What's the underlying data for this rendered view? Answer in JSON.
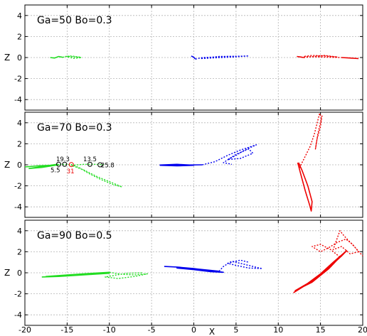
{
  "chart_data": {
    "type": "line",
    "xlabel": "X",
    "ylabel": "Z",
    "xlim": [
      -20,
      20
    ],
    "xticks": [
      -20,
      -15,
      -10,
      -5,
      0,
      5,
      10,
      15,
      20
    ],
    "ylim": [
      -5,
      5
    ],
    "yticks": [
      4,
      2,
      0,
      -2,
      -4
    ],
    "grid": true,
    "colors": {
      "green": "#22dd22",
      "blue": "#0000ee",
      "red": "#ee0000",
      "grid": "#b4b4b4"
    },
    "panels": [
      {
        "label": "Ga=50  Bo=0.3",
        "series": [
          {
            "color": "green",
            "solid": [
              [
                -17.0,
                0.0
              ],
              [
                -16.5,
                -0.05
              ],
              [
                -16.0,
                0.1
              ],
              [
                -15.5,
                0.02
              ]
            ],
            "dotted": [
              [
                -15.5,
                0.02
              ],
              [
                -15.0,
                0.12
              ],
              [
                -14.0,
                0.05
              ],
              [
                -13.3,
                0.0
              ],
              [
                -14.2,
                -0.08
              ],
              [
                -15.2,
                0.1
              ],
              [
                -14.5,
                0.15
              ],
              [
                -13.5,
                0.05
              ]
            ]
          },
          {
            "color": "blue",
            "solid": [
              [
                -0.3,
                0.15
              ],
              [
                0.0,
                0.02
              ],
              [
                0.2,
                -0.15
              ]
            ],
            "dotted": [
              [
                0.2,
                -0.15
              ],
              [
                1.0,
                0.0
              ],
              [
                2.5,
                0.05
              ],
              [
                4.0,
                0.1
              ],
              [
                6.5,
                0.15
              ],
              [
                4.5,
                0.05
              ],
              [
                2.0,
                -0.05
              ],
              [
                0.8,
                -0.1
              ],
              [
                3.0,
                0.1
              ],
              [
                5.0,
                0.12
              ]
            ]
          },
          {
            "color": "red",
            "solid": [
              [
                12.2,
                0.1
              ],
              [
                12.7,
                0.05
              ],
              [
                13.0,
                0.0
              ]
            ],
            "dotted": [
              [
                13.0,
                0.0
              ],
              [
                14.2,
                0.1
              ],
              [
                15.5,
                0.2
              ],
              [
                17.0,
                0.05
              ],
              [
                15.5,
                0.15
              ],
              [
                14.0,
                0.2
              ],
              [
                13.0,
                0.1
              ],
              [
                15.0,
                0.05
              ],
              [
                17.5,
                0.0
              ]
            ],
            "solid_tail": [
              [
                17.5,
                0.0
              ],
              [
                18.5,
                -0.05
              ],
              [
                19.5,
                -0.1
              ]
            ]
          }
        ]
      },
      {
        "label": "Ga=70 Bo=0.3",
        "series": [
          {
            "color": "green",
            "solid": [
              [
                -20.0,
                -0.2
              ],
              [
                -18.5,
                -0.1
              ],
              [
                -17.0,
                -0.05
              ],
              [
                -16.0,
                0.0
              ],
              [
                -18.0,
                -0.25
              ],
              [
                -19.5,
                -0.35
              ],
              [
                -17.5,
                -0.1
              ],
              [
                -16.2,
                0.05
              ]
            ],
            "dotted": [
              [
                -16.2,
                0.05
              ],
              [
                -14.5,
                0.02
              ],
              [
                -13.5,
                -0.3
              ],
              [
                -12.5,
                -0.8
              ],
              [
                -11.0,
                -1.4
              ],
              [
                -9.5,
                -1.9
              ],
              [
                -8.5,
                -2.1
              ],
              [
                -10.0,
                -1.6
              ],
              [
                -11.5,
                -1.1
              ],
              [
                -13.0,
                -0.5
              ],
              [
                -14.5,
                -0.05
              ],
              [
                -13.0,
                0.05
              ],
              [
                -11.5,
                0.05
              ],
              [
                -10.5,
                0.0
              ]
            ]
          },
          {
            "color": "blue",
            "solid": [
              [
                -4.0,
                -0.05
              ],
              [
                -2.0,
                -0.1
              ],
              [
                0.0,
                -0.05
              ],
              [
                -2.0,
                0.05
              ],
              [
                -4.0,
                -0.02
              ],
              [
                -1.0,
                -0.02
              ],
              [
                1.0,
                0.0
              ]
            ],
            "dotted": [
              [
                1.0,
                0.0
              ],
              [
                2.5,
                0.3
              ],
              [
                4.0,
                0.9
              ],
              [
                5.5,
                1.4
              ],
              [
                7.0,
                1.8
              ],
              [
                7.4,
                1.9
              ],
              [
                6.0,
                1.4
              ],
              [
                5.0,
                0.9
              ],
              [
                4.0,
                0.5
              ],
              [
                5.5,
                0.6
              ],
              [
                7.0,
                1.1
              ],
              [
                6.5,
                1.5
              ],
              [
                5.0,
                1.0
              ],
              [
                3.5,
                0.2
              ],
              [
                4.5,
                0.05
              ]
            ]
          },
          {
            "color": "red",
            "solid": [
              [
                12.3,
                0.2
              ],
              [
                12.7,
                -1.0
              ],
              [
                13.2,
                -2.5
              ],
              [
                13.7,
                -3.8
              ],
              [
                13.9,
                -4.4
              ],
              [
                14.0,
                -3.5
              ],
              [
                13.5,
                -2.0
              ],
              [
                12.8,
                -0.5
              ],
              [
                12.4,
                0.2
              ]
            ],
            "dotted": [
              [
                12.5,
                -0.3
              ],
              [
                13.0,
                0.5
              ],
              [
                13.8,
                1.8
              ],
              [
                14.3,
                3.0
              ],
              [
                14.7,
                4.3
              ],
              [
                14.9,
                4.9
              ],
              [
                15.1,
                4.4
              ],
              [
                14.7,
                3.0
              ],
              [
                14.4,
                1.5
              ],
              [
                14.6,
                2.5
              ],
              [
                15.0,
                3.6
              ],
              [
                15.2,
                4.8
              ]
            ]
          }
        ],
        "annotations": [
          {
            "text": "19.3",
            "x": -15.5,
            "y": 0.55,
            "color": "black"
          },
          {
            "text": "13.5",
            "x": -12.3,
            "y": 0.55,
            "color": "black"
          },
          {
            "text": "5.5",
            "x": -16.4,
            "y": -0.5,
            "color": "black"
          },
          {
            "text": "31",
            "x": -14.6,
            "y": -0.6,
            "color": "red"
          },
          {
            "text": "25.8",
            "x": -10.2,
            "y": -0.05,
            "color": "black"
          }
        ],
        "markers": [
          {
            "x": -16.0,
            "y": 0.05,
            "color": "black"
          },
          {
            "x": -15.3,
            "y": 0.05,
            "color": "black"
          },
          {
            "x": -14.5,
            "y": 0.02,
            "color": "red"
          },
          {
            "x": -12.3,
            "y": 0.05,
            "color": "black"
          },
          {
            "x": -11.1,
            "y": 0.0,
            "color": "black"
          }
        ]
      },
      {
        "label": "Ga=90 Bo=0.5",
        "series": [
          {
            "color": "green",
            "solid": [
              [
                -18.0,
                -0.4
              ],
              [
                -16.0,
                -0.35
              ],
              [
                -14.0,
                -0.25
              ],
              [
                -12.0,
                -0.15
              ],
              [
                -10.0,
                -0.05
              ],
              [
                -11.0,
                -0.02
              ],
              [
                -13.0,
                -0.1
              ],
              [
                -15.5,
                -0.3
              ],
              [
                -17.5,
                -0.35
              ],
              [
                -15.0,
                -0.2
              ],
              [
                -12.0,
                -0.05
              ],
              [
                -10.0,
                0.05
              ]
            ],
            "dotted": [
              [
                -10.0,
                0.05
              ],
              [
                -8.5,
                -0.15
              ],
              [
                -7.0,
                -0.2
              ],
              [
                -5.5,
                -0.1
              ],
              [
                -7.0,
                -0.35
              ],
              [
                -9.0,
                -0.55
              ],
              [
                -10.5,
                -0.4
              ],
              [
                -8.0,
                -0.05
              ],
              [
                -6.0,
                0.0
              ]
            ]
          },
          {
            "color": "blue",
            "solid": [
              [
                -3.5,
                0.6
              ],
              [
                -2.0,
                0.55
              ],
              [
                0.0,
                0.4
              ],
              [
                2.0,
                0.2
              ],
              [
                3.5,
                0.05
              ],
              [
                2.0,
                0.1
              ],
              [
                0.0,
                0.3
              ],
              [
                -2.0,
                0.45
              ],
              [
                0.5,
                0.35
              ],
              [
                3.0,
                0.15
              ]
            ],
            "dotted": [
              [
                3.0,
                0.15
              ],
              [
                3.5,
                0.6
              ],
              [
                4.5,
                1.1
              ],
              [
                5.5,
                0.9
              ],
              [
                6.5,
                0.7
              ],
              [
                7.5,
                0.5
              ],
              [
                8.1,
                0.4
              ],
              [
                6.5,
                0.45
              ],
              [
                5.0,
                0.7
              ],
              [
                4.0,
                0.9
              ],
              [
                5.5,
                1.2
              ],
              [
                6.5,
                1.0
              ]
            ]
          },
          {
            "color": "red",
            "solid": [
              [
                11.8,
                -1.9
              ],
              [
                13.0,
                -1.3
              ],
              [
                14.5,
                -0.5
              ],
              [
                16.0,
                0.5
              ],
              [
                17.5,
                1.6
              ],
              [
                18.1,
                2.1
              ],
              [
                16.5,
                1.0
              ],
              [
                15.0,
                -0.1
              ],
              [
                13.5,
                -1.0
              ],
              [
                12.0,
                -1.7
              ],
              [
                14.0,
                -0.9
              ],
              [
                16.0,
                0.4
              ],
              [
                17.3,
                1.5
              ]
            ],
            "dotted": [
              [
                17.3,
                1.5
              ],
              [
                16.2,
                2.2
              ],
              [
                15.0,
                2.7
              ],
              [
                14.0,
                2.5
              ],
              [
                15.0,
                2.0
              ],
              [
                16.0,
                2.4
              ],
              [
                17.0,
                2.9
              ],
              [
                18.0,
                3.2
              ],
              [
                18.8,
                2.7
              ],
              [
                19.5,
                2.0
              ],
              [
                18.5,
                1.8
              ],
              [
                17.5,
                2.5
              ],
              [
                16.5,
                2.2
              ],
              [
                17.3,
                4.0
              ],
              [
                17.8,
                3.5
              ],
              [
                19.0,
                2.5
              ],
              [
                20.0,
                1.6
              ]
            ]
          }
        ]
      }
    ]
  }
}
